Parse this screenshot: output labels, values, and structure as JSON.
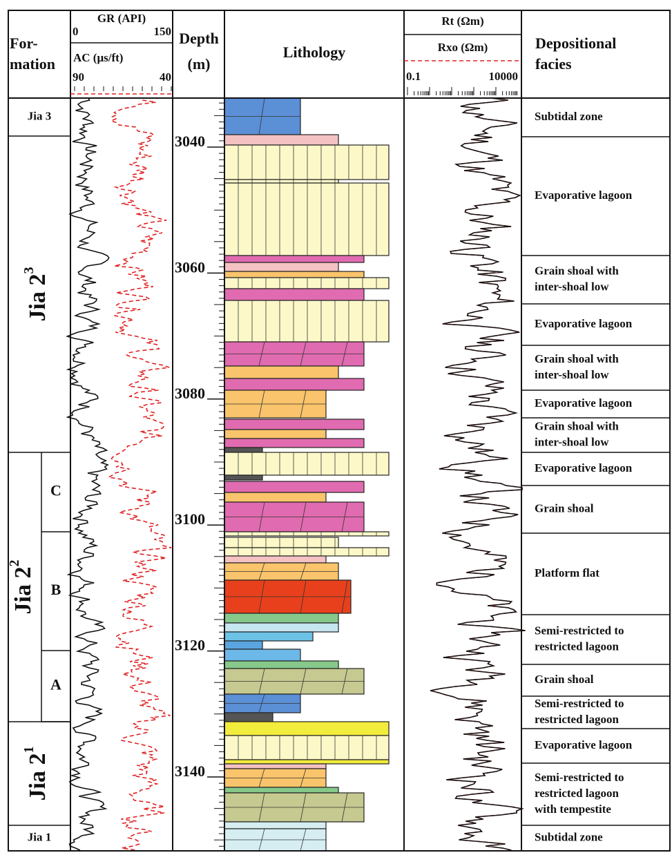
{
  "header": {
    "formation": [
      "For-",
      "mation"
    ],
    "gr_label": "GR (API)",
    "gr_min": "0",
    "gr_max": "150",
    "ac_label": "AC (μs/ft)",
    "ac_min": "90",
    "ac_max": "40",
    "depth": "Depth",
    "depth_unit": "(m)",
    "lithology": "Lithology",
    "rt": "Rt (Ωm)",
    "rxo": "Rxo (Ωm)",
    "res_min": "0.1",
    "res_max": "10000",
    "facies": [
      "Depositional",
      "facies"
    ]
  },
  "formations": [
    {
      "name": "Jia 3"
    },
    {
      "name": "Jia 2",
      "sup": "3"
    },
    {
      "name": "Jia 2",
      "sup": "2",
      "members": [
        "C",
        "B",
        "A"
      ]
    },
    {
      "name": "Jia 2",
      "sup": "1"
    },
    {
      "name": "Jia 1"
    }
  ],
  "depths": [
    3040,
    3060,
    3080,
    3100,
    3120,
    3140
  ],
  "facies": [
    [
      "Subtidal zone"
    ],
    [
      "Evaporative lagoon"
    ],
    [
      "Grain shoal with",
      "inter-shoal low"
    ],
    [
      "Evaporative  lagoon"
    ],
    [
      "Grain shoal with",
      "inter-shoal low"
    ],
    [
      "Evaporative  lagoon"
    ],
    [
      "Grain shoal with",
      "inter-shoal low"
    ],
    [
      "Evaporative  lagoon"
    ],
    [
      "Grain  shoal"
    ],
    [
      "Platform flat"
    ],
    [
      "Semi-restricted to",
      "restricted lagoon"
    ],
    [
      "Grain  shoal"
    ],
    [
      "Semi-restricted to",
      "restricted lagoon"
    ],
    [
      "Evaporative  lagoon"
    ],
    [
      "Semi-restricted to",
      "restricted lagoon",
      "with tempestite"
    ],
    [
      "Subtidal zone"
    ]
  ]
}
